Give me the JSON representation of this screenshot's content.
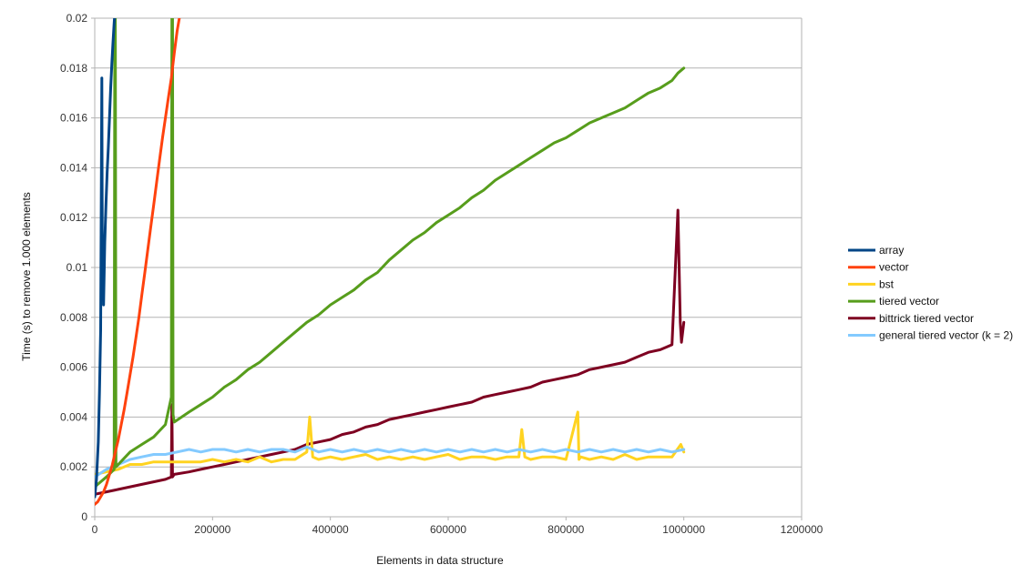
{
  "chart_data": {
    "type": "line",
    "title": "",
    "xlabel": "Elements in data structure",
    "ylabel": "Time (s) to remove 1.000 elements",
    "xlim": [
      0,
      1200000
    ],
    "ylim": [
      0,
      0.02
    ],
    "x_ticks": [
      0,
      200000,
      400000,
      600000,
      800000,
      1000000,
      1200000
    ],
    "x_tick_labels": [
      "0",
      "200000",
      "400000",
      "600000",
      "800000",
      "1000000",
      "1200000"
    ],
    "y_ticks": [
      0,
      0.002,
      0.004,
      0.006,
      0.008,
      0.01,
      0.012,
      0.014,
      0.016,
      0.018,
      0.02
    ],
    "y_tick_labels": [
      "0",
      "0.002",
      "0.004",
      "0.006",
      "0.008",
      "0.01",
      "0.012",
      "0.014",
      "0.016",
      "0.018",
      "0.02"
    ],
    "grid": true,
    "legend_position": "right",
    "series": [
      {
        "name": "array",
        "color": "#004586",
        "x": [
          0,
          3000,
          6000,
          8000,
          10000,
          12000,
          13000,
          14000,
          15000,
          17000,
          19000,
          21000,
          23000,
          25000,
          27000,
          29000,
          31000,
          33000,
          35000
        ],
        "y": [
          0.0008,
          0.0015,
          0.003,
          0.005,
          0.0075,
          0.0176,
          0.0092,
          0.0106,
          0.0085,
          0.011,
          0.0125,
          0.0138,
          0.0148,
          0.016,
          0.0172,
          0.0182,
          0.019,
          0.0198,
          0.0205
        ]
      },
      {
        "name": "vector",
        "color": "#ff420e",
        "x": [
          0,
          5000,
          10000,
          15000,
          20000,
          25000,
          30000,
          35000,
          40000,
          45000,
          50000,
          55000,
          60000,
          65000,
          70000,
          75000,
          80000,
          85000,
          90000,
          95000,
          100000,
          105000,
          110000,
          115000,
          120000,
          125000,
          130000,
          135000,
          140000,
          145000
        ],
        "y": [
          0.0005,
          0.0006,
          0.0008,
          0.001,
          0.0013,
          0.0017,
          0.0021,
          0.0026,
          0.0031,
          0.0037,
          0.0043,
          0.005,
          0.0057,
          0.0064,
          0.0072,
          0.008,
          0.0089,
          0.0098,
          0.0107,
          0.0116,
          0.0125,
          0.0134,
          0.0143,
          0.0152,
          0.016,
          0.0168,
          0.0176,
          0.0186,
          0.0195,
          0.0202
        ]
      },
      {
        "name": "bst",
        "color": "#ffd320",
        "x": [
          0,
          20000,
          40000,
          60000,
          80000,
          100000,
          120000,
          140000,
          160000,
          180000,
          200000,
          220000,
          240000,
          260000,
          280000,
          300000,
          320000,
          340000,
          360000,
          365000,
          370000,
          380000,
          400000,
          420000,
          440000,
          460000,
          480000,
          500000,
          520000,
          540000,
          560000,
          580000,
          600000,
          620000,
          640000,
          660000,
          680000,
          700000,
          720000,
          725000,
          730000,
          740000,
          760000,
          780000,
          800000,
          820000,
          822000,
          825000,
          840000,
          860000,
          880000,
          900000,
          920000,
          940000,
          960000,
          980000,
          995000,
          1000000
        ],
        "y": [
          0.0017,
          0.0018,
          0.0019,
          0.0021,
          0.0021,
          0.0022,
          0.0022,
          0.0022,
          0.0022,
          0.0022,
          0.0023,
          0.0022,
          0.0023,
          0.0022,
          0.0024,
          0.0022,
          0.0023,
          0.0023,
          0.0026,
          0.004,
          0.0024,
          0.0023,
          0.0024,
          0.0023,
          0.0024,
          0.0025,
          0.0023,
          0.0024,
          0.0023,
          0.0024,
          0.0023,
          0.0024,
          0.0025,
          0.0023,
          0.0024,
          0.0024,
          0.0023,
          0.0024,
          0.0024,
          0.0035,
          0.0024,
          0.0023,
          0.0024,
          0.0024,
          0.0023,
          0.0042,
          0.0023,
          0.0024,
          0.0023,
          0.0024,
          0.0023,
          0.0025,
          0.0023,
          0.0024,
          0.0024,
          0.0024,
          0.0029,
          0.0026
        ]
      },
      {
        "name": "tiered vector",
        "color": "#579d1c",
        "x": [
          0,
          20000,
          33000,
          34000,
          35000,
          36000,
          60000,
          80000,
          100000,
          120000,
          130000,
          131000,
          132000,
          133000,
          135000,
          160000,
          180000,
          200000,
          220000,
          240000,
          260000,
          280000,
          300000,
          320000,
          340000,
          360000,
          380000,
          400000,
          420000,
          440000,
          460000,
          480000,
          500000,
          520000,
          540000,
          560000,
          580000,
          600000,
          620000,
          640000,
          660000,
          680000,
          700000,
          720000,
          740000,
          760000,
          780000,
          800000,
          820000,
          840000,
          860000,
          880000,
          900000,
          920000,
          940000,
          960000,
          980000,
          990000,
          1000000
        ],
        "y": [
          0.0012,
          0.0016,
          0.0019,
          0.02,
          0.0205,
          0.002,
          0.0026,
          0.0029,
          0.0032,
          0.0037,
          0.0048,
          0.02,
          0.0205,
          0.0041,
          0.0038,
          0.0042,
          0.0045,
          0.0048,
          0.0052,
          0.0055,
          0.0059,
          0.0062,
          0.0066,
          0.007,
          0.0074,
          0.0078,
          0.0081,
          0.0085,
          0.0088,
          0.0091,
          0.0095,
          0.0098,
          0.0103,
          0.0107,
          0.0111,
          0.0114,
          0.0118,
          0.0121,
          0.0124,
          0.0128,
          0.0131,
          0.0135,
          0.0138,
          0.0141,
          0.0144,
          0.0147,
          0.015,
          0.0152,
          0.0155,
          0.0158,
          0.016,
          0.0162,
          0.0164,
          0.0167,
          0.017,
          0.0172,
          0.0175,
          0.0178,
          0.018
        ]
      },
      {
        "name": "bittrick tiered vector",
        "color": "#7e0021",
        "x": [
          0,
          20000,
          40000,
          60000,
          80000,
          100000,
          120000,
          130000,
          131000,
          132000,
          135000,
          160000,
          180000,
          200000,
          220000,
          240000,
          260000,
          280000,
          300000,
          320000,
          340000,
          360000,
          380000,
          400000,
          420000,
          440000,
          460000,
          480000,
          500000,
          520000,
          540000,
          560000,
          580000,
          600000,
          620000,
          640000,
          660000,
          680000,
          700000,
          720000,
          740000,
          760000,
          780000,
          800000,
          820000,
          840000,
          860000,
          880000,
          900000,
          920000,
          940000,
          960000,
          980000,
          990000,
          994000,
          996000,
          1000000
        ],
        "y": [
          0.0009,
          0.001,
          0.0011,
          0.0012,
          0.0013,
          0.0014,
          0.0015,
          0.0016,
          0.0045,
          0.0016,
          0.0017,
          0.0018,
          0.0019,
          0.002,
          0.0021,
          0.0022,
          0.0023,
          0.0024,
          0.0025,
          0.0026,
          0.0027,
          0.0029,
          0.003,
          0.0031,
          0.0033,
          0.0034,
          0.0036,
          0.0037,
          0.0039,
          0.004,
          0.0041,
          0.0042,
          0.0043,
          0.0044,
          0.0045,
          0.0046,
          0.0048,
          0.0049,
          0.005,
          0.0051,
          0.0052,
          0.0054,
          0.0055,
          0.0056,
          0.0057,
          0.0059,
          0.006,
          0.0061,
          0.0062,
          0.0064,
          0.0066,
          0.0067,
          0.0069,
          0.0123,
          0.0078,
          0.007,
          0.0078
        ]
      },
      {
        "name": "general tiered vector (k = 2)",
        "color": "#83caff",
        "x": [
          0,
          20000,
          40000,
          60000,
          80000,
          100000,
          120000,
          140000,
          160000,
          180000,
          200000,
          220000,
          240000,
          260000,
          280000,
          300000,
          320000,
          340000,
          360000,
          380000,
          400000,
          420000,
          440000,
          460000,
          480000,
          500000,
          520000,
          540000,
          560000,
          580000,
          600000,
          620000,
          640000,
          660000,
          680000,
          700000,
          720000,
          740000,
          760000,
          780000,
          800000,
          820000,
          840000,
          860000,
          880000,
          900000,
          920000,
          940000,
          960000,
          980000,
          1000000
        ],
        "y": [
          0.0016,
          0.0019,
          0.0021,
          0.0023,
          0.0024,
          0.0025,
          0.0025,
          0.0026,
          0.0027,
          0.0026,
          0.0027,
          0.0027,
          0.0026,
          0.0027,
          0.0026,
          0.0027,
          0.0027,
          0.0026,
          0.0028,
          0.0026,
          0.0027,
          0.0026,
          0.0027,
          0.0026,
          0.0027,
          0.0026,
          0.0027,
          0.0026,
          0.0027,
          0.0026,
          0.0027,
          0.0026,
          0.0027,
          0.0026,
          0.0027,
          0.0026,
          0.0027,
          0.0026,
          0.0027,
          0.0026,
          0.0027,
          0.0026,
          0.0027,
          0.0026,
          0.0027,
          0.0026,
          0.0027,
          0.0026,
          0.0027,
          0.0026,
          0.0027
        ]
      }
    ]
  }
}
